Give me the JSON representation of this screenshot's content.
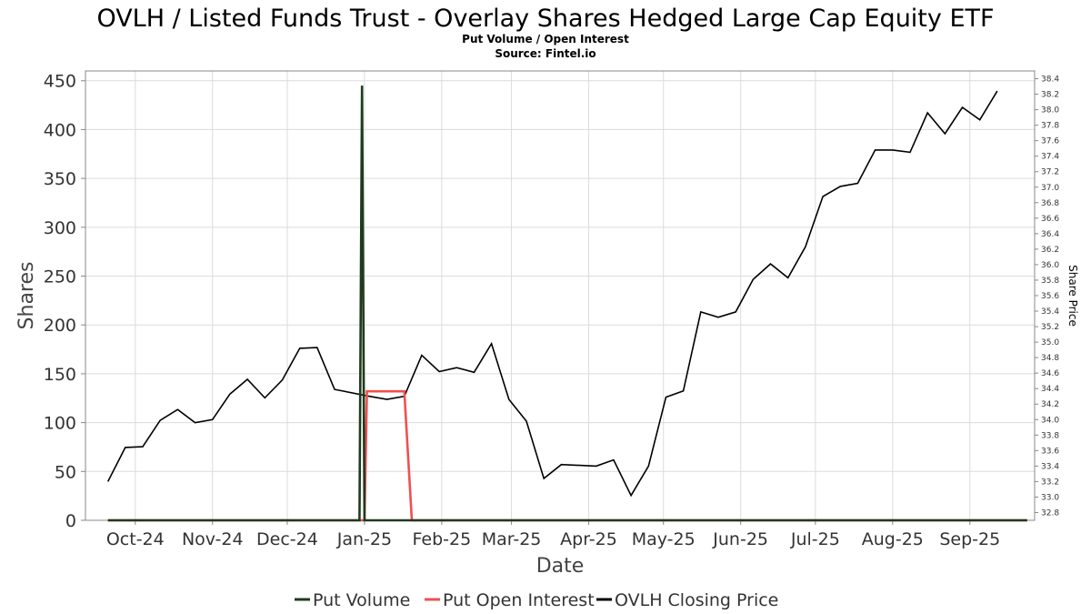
{
  "chart_data": {
    "type": "line",
    "title": "OVLH / Listed Funds Trust - Overlay Shares Hedged Large Cap Equity ETF",
    "subtitle": "Put Volume / Open Interest",
    "source": "Source: Fintel.io",
    "xlabel": "Date",
    "ylabel": "Shares",
    "y2label": "Share Price",
    "ylim": [
      0,
      460
    ],
    "y2lim": [
      32.7,
      38.5
    ],
    "yticks": [
      0,
      50,
      100,
      150,
      200,
      250,
      300,
      350,
      400,
      450
    ],
    "y2ticks": [
      "32.8",
      "33.0",
      "33.2",
      "33.4",
      "33.6",
      "33.8",
      "34.0",
      "34.2",
      "34.4",
      "34.6",
      "34.8",
      "35.0",
      "35.2",
      "35.4",
      "35.6",
      "35.8",
      "36.0",
      "36.2",
      "36.4",
      "36.6",
      "36.8",
      "37.0",
      "37.2",
      "37.4",
      "37.6",
      "37.8",
      "38.0",
      "38.2",
      "38.4"
    ],
    "xlim": [
      "2024-09-11",
      "2025-09-27"
    ],
    "xticks": [
      {
        "label": "Oct-24",
        "date": "2024-10-01"
      },
      {
        "label": "Nov-24",
        "date": "2024-11-01"
      },
      {
        "label": "Dec-24",
        "date": "2024-12-01"
      },
      {
        "label": "Jan-25",
        "date": "2025-01-01"
      },
      {
        "label": "Feb-25",
        "date": "2025-02-01"
      },
      {
        "label": "Mar-25",
        "date": "2025-03-01"
      },
      {
        "label": "Apr-25",
        "date": "2025-04-01"
      },
      {
        "label": "May-25",
        "date": "2025-05-01"
      },
      {
        "label": "Jun-25",
        "date": "2025-06-01"
      },
      {
        "label": "Jul-25",
        "date": "2025-07-01"
      },
      {
        "label": "Aug-25",
        "date": "2025-08-01"
      },
      {
        "label": "Sep-25",
        "date": "2025-09-01"
      }
    ],
    "grid": true,
    "legend_position": "bottom",
    "series": [
      {
        "name": "Put Volume",
        "axis": "left",
        "color": "#1f3a1f",
        "points": [
          [
            "2024-09-20",
            0
          ],
          [
            "2024-12-30",
            0
          ],
          [
            "2024-12-31",
            445
          ],
          [
            "2025-01-01",
            0
          ],
          [
            "2025-09-24",
            0
          ]
        ]
      },
      {
        "name": "Put Open Interest",
        "axis": "left",
        "color": "#f05050",
        "points": [
          [
            "2024-09-20",
            0
          ],
          [
            "2025-01-01",
            0
          ],
          [
            "2025-01-02",
            132
          ],
          [
            "2025-01-17",
            132
          ],
          [
            "2025-01-20",
            0
          ],
          [
            "2025-09-24",
            0
          ]
        ]
      },
      {
        "name": "OVLH Closing Price",
        "axis": "right",
        "color": "#000000",
        "points": [
          [
            "2024-09-20",
            33.2
          ],
          [
            "2024-09-27",
            33.64
          ],
          [
            "2024-10-04",
            33.65
          ],
          [
            "2024-10-11",
            33.99
          ],
          [
            "2024-10-18",
            34.13
          ],
          [
            "2024-10-25",
            33.96
          ],
          [
            "2024-11-01",
            34.0
          ],
          [
            "2024-11-08",
            34.33
          ],
          [
            "2024-11-15",
            34.52
          ],
          [
            "2024-11-22",
            34.28
          ],
          [
            "2024-11-29",
            34.51
          ],
          [
            "2024-12-06",
            34.92
          ],
          [
            "2024-12-13",
            34.93
          ],
          [
            "2024-12-20",
            34.39
          ],
          [
            "2025-01-03",
            34.3
          ],
          [
            "2025-01-10",
            34.26
          ],
          [
            "2025-01-17",
            34.3
          ],
          [
            "2025-01-24",
            34.83
          ],
          [
            "2025-01-31",
            34.62
          ],
          [
            "2025-02-07",
            34.67
          ],
          [
            "2025-02-14",
            34.61
          ],
          [
            "2025-02-21",
            34.98
          ],
          [
            "2025-02-28",
            34.26
          ],
          [
            "2025-03-07",
            33.98
          ],
          [
            "2025-03-14",
            33.24
          ],
          [
            "2025-03-21",
            33.42
          ],
          [
            "2025-04-04",
            33.4
          ],
          [
            "2025-04-11",
            33.48
          ],
          [
            "2025-04-18",
            33.02
          ],
          [
            "2025-04-25",
            33.4
          ],
          [
            "2025-05-02",
            34.29
          ],
          [
            "2025-05-09",
            34.37
          ],
          [
            "2025-05-16",
            35.39
          ],
          [
            "2025-05-23",
            35.32
          ],
          [
            "2025-05-30",
            35.39
          ],
          [
            "2025-06-06",
            35.81
          ],
          [
            "2025-06-13",
            36.01
          ],
          [
            "2025-06-20",
            35.83
          ],
          [
            "2025-06-27",
            36.23
          ],
          [
            "2025-07-04",
            36.88
          ],
          [
            "2025-07-11",
            37.01
          ],
          [
            "2025-07-18",
            37.05
          ],
          [
            "2025-07-25",
            37.48
          ],
          [
            "2025-08-01",
            37.48
          ],
          [
            "2025-08-08",
            37.45
          ],
          [
            "2025-08-15",
            37.96
          ],
          [
            "2025-08-22",
            37.69
          ],
          [
            "2025-08-29",
            38.03
          ],
          [
            "2025-09-05",
            37.87
          ],
          [
            "2025-09-12",
            38.24
          ]
        ]
      }
    ]
  }
}
